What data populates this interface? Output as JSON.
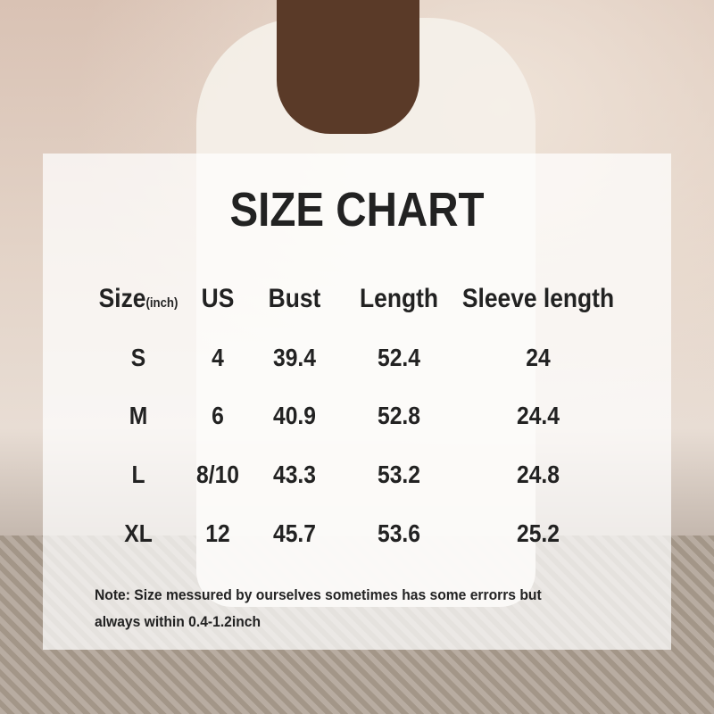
{
  "title": "SIZE CHART",
  "table": {
    "headers": {
      "size": "Size",
      "size_unit": "(inch)",
      "us": "US",
      "bust": "Bust",
      "length": "Length",
      "sleeve": "Sleeve length"
    },
    "rows": [
      {
        "size": "S",
        "us": "4",
        "bust": "39.4",
        "length": "52.4",
        "sleeve": "24"
      },
      {
        "size": "M",
        "us": "6",
        "bust": "40.9",
        "length": "52.8",
        "sleeve": "24.4"
      },
      {
        "size": "L",
        "us": "8/10",
        "bust": "43.3",
        "length": "53.2",
        "sleeve": "24.8"
      },
      {
        "size": "XL",
        "us": "12",
        "bust": "45.7",
        "length": "53.6",
        "sleeve": "25.2"
      }
    ]
  },
  "note": {
    "line1": "Note:  Size messured by ourselves sometimes has some errorrs but",
    "line2": "always within 0.4-1.2inch"
  }
}
